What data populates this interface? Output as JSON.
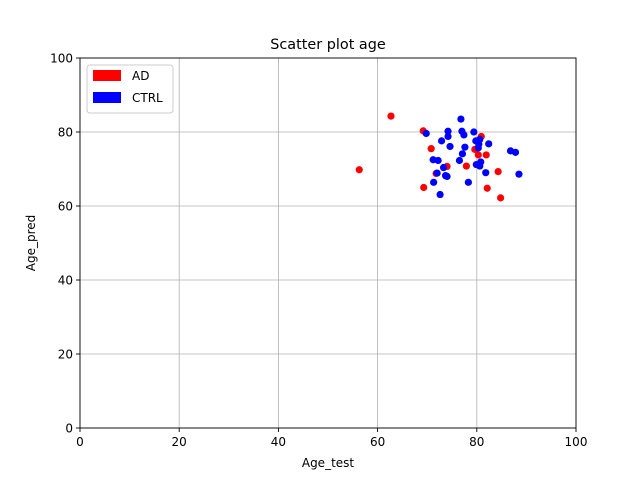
{
  "chart_data": {
    "type": "scatter",
    "title": "Scatter plot age",
    "xlabel": "Age_test",
    "ylabel": "Age_pred",
    "xlim": [
      0,
      100
    ],
    "ylim": [
      0,
      100
    ],
    "xticks": [
      0,
      20,
      40,
      60,
      80,
      100
    ],
    "yticks": [
      0,
      20,
      40,
      60,
      80,
      100
    ],
    "grid": true,
    "legend_position": "top-left",
    "series": [
      {
        "name": "AD",
        "color": "#ff0000",
        "points": [
          [
            56.3,
            69.8
          ],
          [
            62.7,
            84.3
          ],
          [
            69.2,
            80.3
          ],
          [
            69.3,
            65.0
          ],
          [
            70.8,
            75.5
          ],
          [
            71.8,
            68.8
          ],
          [
            74.0,
            70.7
          ],
          [
            77.9,
            70.8
          ],
          [
            79.6,
            75.3
          ],
          [
            80.3,
            73.8
          ],
          [
            80.9,
            78.8
          ],
          [
            81.9,
            73.8
          ],
          [
            82.1,
            64.8
          ],
          [
            84.3,
            69.3
          ],
          [
            84.8,
            62.2
          ]
        ]
      },
      {
        "name": "CTRL",
        "color": "#0000ff",
        "points": [
          [
            69.8,
            79.6
          ],
          [
            71.2,
            72.5
          ],
          [
            71.3,
            66.4
          ],
          [
            72.0,
            68.9
          ],
          [
            72.2,
            72.3
          ],
          [
            72.6,
            63.1
          ],
          [
            72.9,
            77.6
          ],
          [
            73.3,
            70.4
          ],
          [
            73.7,
            68.2
          ],
          [
            74.0,
            68.0
          ],
          [
            74.2,
            80.2
          ],
          [
            74.2,
            78.8
          ],
          [
            74.6,
            76.1
          ],
          [
            76.5,
            72.3
          ],
          [
            76.8,
            83.5
          ],
          [
            77.0,
            80.2
          ],
          [
            77.1,
            74.1
          ],
          [
            77.4,
            79.2
          ],
          [
            77.6,
            75.9
          ],
          [
            78.3,
            66.4
          ],
          [
            79.4,
            80.0
          ],
          [
            79.8,
            77.6
          ],
          [
            79.9,
            71.2
          ],
          [
            80.3,
            75.7
          ],
          [
            80.4,
            76.7
          ],
          [
            80.6,
            78.0
          ],
          [
            80.6,
            70.8
          ],
          [
            80.8,
            71.9
          ],
          [
            81.8,
            69.0
          ],
          [
            82.4,
            76.8
          ],
          [
            86.8,
            74.9
          ],
          [
            87.8,
            74.5
          ],
          [
            88.5,
            68.6
          ]
        ]
      }
    ]
  }
}
